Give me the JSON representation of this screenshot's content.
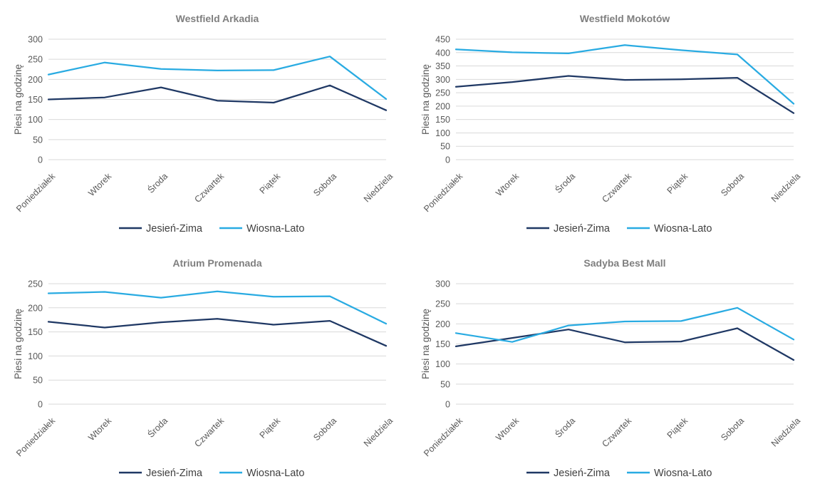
{
  "page": {
    "background": "#ffffff"
  },
  "colors": {
    "grid_line": "#D9D9D9",
    "title_text": "#7F7F7F",
    "axis_text": "#595959",
    "legend_text": "#3F3F3F",
    "series_dark": "#1F3864",
    "series_light": "#29ABE2"
  },
  "chart_data": [
    {
      "type": "line",
      "title": "Westfield Arkadia",
      "ylabel": "Piesi na godzinę",
      "xlabel": "",
      "categories": [
        "Poniedziałek",
        "Wtorek",
        "Środa",
        "Czwartek",
        "Piątek",
        "Sobota",
        "Niedziela"
      ],
      "ylim": [
        0,
        300
      ],
      "yticks": [
        0,
        50,
        100,
        150,
        200,
        250,
        300
      ],
      "grid": true,
      "legend_position": "bottom",
      "series": [
        {
          "name": "Jesień-Zima",
          "color": "#1F3864",
          "values": [
            150,
            155,
            180,
            147,
            142,
            185,
            123
          ]
        },
        {
          "name": "Wiosna-Lato",
          "color": "#29ABE2",
          "values": [
            212,
            242,
            226,
            222,
            223,
            257,
            151
          ]
        }
      ]
    },
    {
      "type": "line",
      "title": "Westfield Mokotów",
      "ylabel": "Piesi na godzinę",
      "xlabel": "",
      "categories": [
        "Poniedziałek",
        "Wtorek",
        "Środa",
        "Czwartek",
        "Piątek",
        "Sobota",
        "Niedziela"
      ],
      "ylim": [
        0,
        450
      ],
      "yticks": [
        0,
        50,
        100,
        150,
        200,
        250,
        300,
        350,
        400,
        450
      ],
      "grid": true,
      "legend_position": "bottom",
      "series": [
        {
          "name": "Jesień-Zima",
          "color": "#1F3864",
          "values": [
            272,
            290,
            313,
            298,
            300,
            306,
            174
          ]
        },
        {
          "name": "Wiosna-Lato",
          "color": "#29ABE2",
          "values": [
            412,
            401,
            397,
            428,
            409,
            393,
            209
          ]
        }
      ]
    },
    {
      "type": "line",
      "title": "Atrium Promenada",
      "ylabel": "Piesi na godzinę",
      "xlabel": "",
      "categories": [
        "Poniedziałek",
        "Wtorek",
        "Środa",
        "Czwartek",
        "Piątek",
        "Sobota",
        "Niedziela"
      ],
      "ylim": [
        0,
        250
      ],
      "yticks": [
        0,
        50,
        100,
        150,
        200,
        250
      ],
      "grid": true,
      "legend_position": "bottom",
      "series": [
        {
          "name": "Jesień-Zima",
          "color": "#1F3864",
          "values": [
            171,
            159,
            170,
            177,
            165,
            173,
            121
          ]
        },
        {
          "name": "Wiosna-Lato",
          "color": "#29ABE2",
          "values": [
            230,
            233,
            221,
            234,
            223,
            224,
            167
          ]
        }
      ]
    },
    {
      "type": "line",
      "title": "Sadyba Best Mall",
      "ylabel": "Piesi na godzinę",
      "xlabel": "",
      "categories": [
        "Poniedziałek",
        "Wtorek",
        "Środa",
        "Czwartek",
        "Piątek",
        "Sobota",
        "Niedziela"
      ],
      "ylim": [
        0,
        300
      ],
      "yticks": [
        0,
        50,
        100,
        150,
        200,
        250,
        300
      ],
      "grid": true,
      "legend_position": "bottom",
      "series": [
        {
          "name": "Jesień-Zima",
          "color": "#1F3864",
          "values": [
            144,
            165,
            186,
            154,
            156,
            189,
            110
          ]
        },
        {
          "name": "Wiosna-Lato",
          "color": "#29ABE2",
          "values": [
            177,
            155,
            196,
            206,
            207,
            240,
            161
          ]
        }
      ]
    }
  ]
}
